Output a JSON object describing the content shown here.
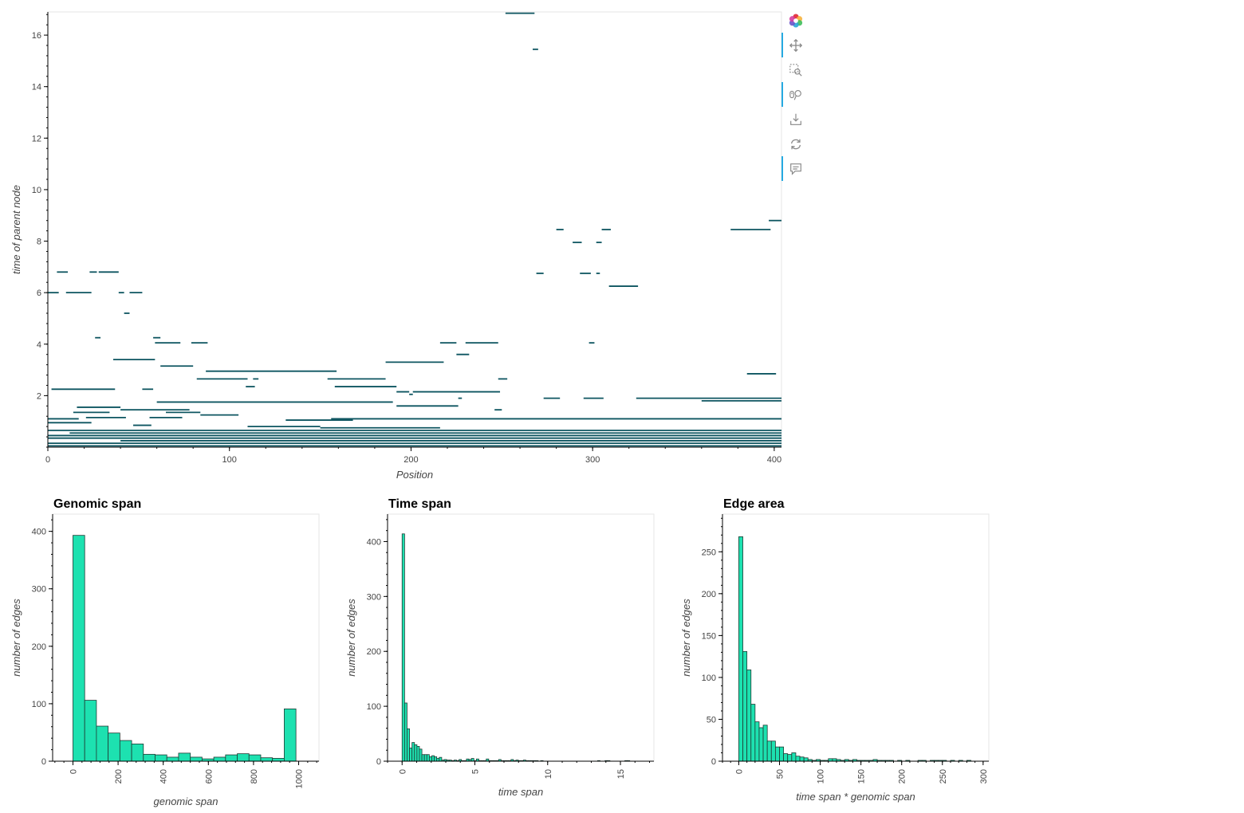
{
  "colors": {
    "edge": "#0d5560",
    "bar_fill": "#1de1b0",
    "bar_stroke": "#1f3a33",
    "axis": "#000000",
    "frame": "#e5e5e5",
    "toolbar_accent": "#26aae1"
  },
  "toolbar": {
    "items": [
      {
        "icon": "bokeh-logo-icon",
        "active": false
      },
      {
        "icon": "pan-icon",
        "active": true
      },
      {
        "icon": "box-zoom-icon",
        "active": false
      },
      {
        "icon": "wheel-zoom-icon",
        "active": true
      },
      {
        "icon": "save-icon",
        "active": false
      },
      {
        "icon": "reset-icon",
        "active": false
      },
      {
        "icon": "hover-icon",
        "active": true
      }
    ]
  },
  "chart_data": [
    {
      "type": "segments",
      "title": "",
      "xlabel": "Position",
      "ylabel": "time of parent node",
      "xlim": [
        0,
        404
      ],
      "ylim": [
        0,
        16.9
      ],
      "xticks": [
        0,
        100,
        200,
        300,
        400
      ],
      "yticks": [
        2,
        4,
        6,
        8,
        10,
        12,
        14,
        16
      ],
      "segments": [
        {
          "x0": 252,
          "x1": 268,
          "y": 16.85
        },
        {
          "x0": 267,
          "x1": 270,
          "y": 15.45
        },
        {
          "x0": 397,
          "x1": 404,
          "y": 8.8
        },
        {
          "x0": 280,
          "x1": 284,
          "y": 8.45
        },
        {
          "x0": 305,
          "x1": 310,
          "y": 8.45
        },
        {
          "x0": 376,
          "x1": 398,
          "y": 8.45
        },
        {
          "x0": 289,
          "x1": 294,
          "y": 7.95
        },
        {
          "x0": 302,
          "x1": 305,
          "y": 7.95
        },
        {
          "x0": 5,
          "x1": 11,
          "y": 6.8
        },
        {
          "x0": 23,
          "x1": 27,
          "y": 6.8
        },
        {
          "x0": 28,
          "x1": 39,
          "y": 6.8
        },
        {
          "x0": 269,
          "x1": 273,
          "y": 6.75
        },
        {
          "x0": 293,
          "x1": 299,
          "y": 6.75
        },
        {
          "x0": 302,
          "x1": 304,
          "y": 6.75
        },
        {
          "x0": 309,
          "x1": 325,
          "y": 6.25
        },
        {
          "x0": 0,
          "x1": 6,
          "y": 6.0
        },
        {
          "x0": 10,
          "x1": 24,
          "y": 6.0
        },
        {
          "x0": 39,
          "x1": 42,
          "y": 6.0
        },
        {
          "x0": 45,
          "x1": 52,
          "y": 6.0
        },
        {
          "x0": 42,
          "x1": 45,
          "y": 5.2
        },
        {
          "x0": 26,
          "x1": 29,
          "y": 4.25
        },
        {
          "x0": 58,
          "x1": 62,
          "y": 4.25
        },
        {
          "x0": 59,
          "x1": 73,
          "y": 4.05
        },
        {
          "x0": 79,
          "x1": 88,
          "y": 4.05
        },
        {
          "x0": 216,
          "x1": 225,
          "y": 4.05
        },
        {
          "x0": 230,
          "x1": 248,
          "y": 4.05
        },
        {
          "x0": 298,
          "x1": 301,
          "y": 4.05
        },
        {
          "x0": 225,
          "x1": 232,
          "y": 3.6
        },
        {
          "x0": 36,
          "x1": 59,
          "y": 3.4
        },
        {
          "x0": 186,
          "x1": 218,
          "y": 3.3
        },
        {
          "x0": 62,
          "x1": 80,
          "y": 3.15
        },
        {
          "x0": 87,
          "x1": 159,
          "y": 2.95
        },
        {
          "x0": 82,
          "x1": 110,
          "y": 2.65
        },
        {
          "x0": 113,
          "x1": 116,
          "y": 2.65
        },
        {
          "x0": 154,
          "x1": 186,
          "y": 2.65
        },
        {
          "x0": 248,
          "x1": 253,
          "y": 2.65
        },
        {
          "x0": 385,
          "x1": 401,
          "y": 2.85
        },
        {
          "x0": 109,
          "x1": 114,
          "y": 2.35
        },
        {
          "x0": 158,
          "x1": 192,
          "y": 2.35
        },
        {
          "x0": 2,
          "x1": 37,
          "y": 2.25
        },
        {
          "x0": 52,
          "x1": 58,
          "y": 2.25
        },
        {
          "x0": 192,
          "x1": 199,
          "y": 2.15
        },
        {
          "x0": 201,
          "x1": 249,
          "y": 2.15
        },
        {
          "x0": 199,
          "x1": 201,
          "y": 2.05
        },
        {
          "x0": 226,
          "x1": 228,
          "y": 1.9
        },
        {
          "x0": 273,
          "x1": 282,
          "y": 1.9
        },
        {
          "x0": 295,
          "x1": 306,
          "y": 1.9
        },
        {
          "x0": 324,
          "x1": 404,
          "y": 1.9
        },
        {
          "x0": 360,
          "x1": 404,
          "y": 1.8
        },
        {
          "x0": 60,
          "x1": 190,
          "y": 1.75
        },
        {
          "x0": 192,
          "x1": 226,
          "y": 1.6
        },
        {
          "x0": 16,
          "x1": 40,
          "y": 1.55
        },
        {
          "x0": 40,
          "x1": 78,
          "y": 1.45
        },
        {
          "x0": 246,
          "x1": 250,
          "y": 1.45
        },
        {
          "x0": 14,
          "x1": 34,
          "y": 1.35
        },
        {
          "x0": 65,
          "x1": 84,
          "y": 1.35
        },
        {
          "x0": 84,
          "x1": 105,
          "y": 1.25
        },
        {
          "x0": 0,
          "x1": 17,
          "y": 1.1
        },
        {
          "x0": 21,
          "x1": 43,
          "y": 1.15
        },
        {
          "x0": 56,
          "x1": 74,
          "y": 1.15
        },
        {
          "x0": 131,
          "x1": 168,
          "y": 1.05
        },
        {
          "x0": 156,
          "x1": 404,
          "y": 1.1
        },
        {
          "x0": 0,
          "x1": 24,
          "y": 0.95
        },
        {
          "x0": 47,
          "x1": 57,
          "y": 0.85
        },
        {
          "x0": 110,
          "x1": 150,
          "y": 0.8
        },
        {
          "x0": 150,
          "x1": 216,
          "y": 0.75
        },
        {
          "x0": 0,
          "x1": 404,
          "y": 0.65
        },
        {
          "x0": 12,
          "x1": 404,
          "y": 0.55
        },
        {
          "x0": 0,
          "x1": 404,
          "y": 0.45
        },
        {
          "x0": 0,
          "x1": 404,
          "y": 0.35
        },
        {
          "x0": 40,
          "x1": 404,
          "y": 0.25
        },
        {
          "x0": 0,
          "x1": 404,
          "y": 0.15
        },
        {
          "x0": 0,
          "x1": 404,
          "y": 0.05
        }
      ]
    },
    {
      "type": "bar",
      "title": "Genomic span",
      "xlabel": "genomic span",
      "ylabel": "number of edges",
      "xlim": [
        -90,
        1090
      ],
      "ylim": [
        0,
        430
      ],
      "xticks": [
        0,
        200,
        400,
        600,
        800,
        1000
      ],
      "yticks": [
        0,
        100,
        200,
        300,
        400
      ],
      "bin_width": 52,
      "bin_starts": [
        0,
        52,
        104,
        156,
        208,
        260,
        312,
        364,
        416,
        468,
        520,
        572,
        624,
        676,
        728,
        780,
        832,
        884,
        936
      ],
      "values": [
        393,
        106,
        61,
        49,
        36,
        30,
        12,
        11,
        7,
        14,
        7,
        4,
        7,
        11,
        13,
        11,
        6,
        5,
        91
      ]
    },
    {
      "type": "bar",
      "title": "Time span",
      "xlabel": "time span",
      "ylabel": "number of edges",
      "xlim": [
        -1.0,
        17.3
      ],
      "ylim": [
        0,
        450
      ],
      "xticks": [
        0,
        5,
        10,
        15
      ],
      "yticks": [
        0,
        100,
        200,
        300,
        400
      ],
      "bin_width": 0.17,
      "bin_starts": [
        0.0,
        0.17,
        0.34,
        0.51,
        0.68,
        0.85,
        1.02,
        1.19,
        1.36,
        1.53,
        1.7,
        1.87,
        2.04,
        2.21,
        2.38,
        2.55,
        2.72,
        2.89,
        3.06,
        3.23,
        3.4,
        3.57,
        3.74,
        3.91,
        4.08,
        4.25,
        4.42,
        4.59,
        4.76,
        4.93,
        5.1,
        5.27,
        5.44,
        5.61,
        5.78,
        5.95,
        6.12,
        6.29,
        6.46,
        6.63,
        6.8,
        6.97,
        7.14,
        7.31,
        7.48,
        7.65,
        7.82,
        7.99,
        8.16,
        8.33,
        8.5,
        8.67,
        8.84,
        9.01,
        9.18,
        9.35,
        9.52,
        9.69,
        9.86,
        10.03,
        10.2,
        10.37,
        10.54,
        10.71,
        10.88,
        11.05,
        11.22,
        11.39,
        11.56,
        11.73,
        11.9,
        12.07,
        12.24,
        12.41,
        12.58,
        12.75,
        12.92,
        13.09,
        13.26,
        13.43,
        13.6,
        13.77,
        13.94,
        14.11,
        14.28,
        14.45,
        14.62,
        14.79,
        14.96,
        15.13,
        15.3,
        15.47,
        15.64
      ],
      "values": [
        414,
        106,
        59,
        24,
        34,
        30,
        27,
        22,
        12,
        12,
        12,
        8,
        10,
        8,
        5,
        7,
        2,
        3,
        2,
        2,
        1,
        2,
        1,
        3,
        1,
        1,
        4,
        3,
        5,
        1,
        4,
        1,
        1,
        1,
        4,
        1,
        1,
        1,
        1,
        3,
        1,
        1,
        1,
        1,
        3,
        1,
        2,
        1,
        1,
        2,
        1,
        1,
        1,
        1,
        1,
        0,
        1,
        0,
        0,
        0,
        0,
        0,
        0,
        0,
        0,
        0,
        0,
        0,
        0,
        0,
        0,
        0,
        0,
        0,
        0,
        0,
        0,
        0,
        0,
        1,
        0,
        0,
        1,
        1,
        0,
        0,
        0,
        0,
        0,
        0,
        1,
        1,
        0
      ]
    },
    {
      "type": "bar",
      "title": "Edge area",
      "xlabel": "time span * genomic span",
      "ylabel": "number of edges",
      "xlim": [
        -20,
        307
      ],
      "ylim": [
        0,
        295
      ],
      "xticks": [
        0,
        50,
        100,
        150,
        200,
        250,
        300
      ],
      "yticks": [
        0,
        50,
        100,
        150,
        200,
        250
      ],
      "bin_width": 5,
      "bin_starts": [
        0,
        5,
        10,
        15,
        20,
        25,
        30,
        35,
        40,
        45,
        50,
        55,
        60,
        65,
        70,
        75,
        80,
        85,
        90,
        95,
        100,
        105,
        110,
        115,
        120,
        125,
        130,
        135,
        140,
        145,
        150,
        155,
        160,
        165,
        170,
        175,
        180,
        185,
        190,
        195,
        200,
        205,
        210,
        215,
        220,
        225,
        230,
        235,
        240,
        245,
        250,
        255,
        260,
        265,
        270,
        275,
        280,
        285
      ],
      "values": [
        268,
        131,
        109,
        68,
        47,
        40,
        43,
        24,
        24,
        17,
        17,
        9,
        8,
        10,
        6,
        5,
        4,
        2,
        1,
        2,
        1,
        1,
        3,
        3,
        2,
        1,
        2,
        1,
        2,
        1,
        1,
        1,
        1,
        2,
        1,
        1,
        1,
        1,
        0,
        1,
        0,
        1,
        0,
        0,
        1,
        1,
        0,
        1,
        1,
        1,
        1,
        0,
        1,
        0,
        1,
        0,
        1,
        0
      ]
    }
  ]
}
